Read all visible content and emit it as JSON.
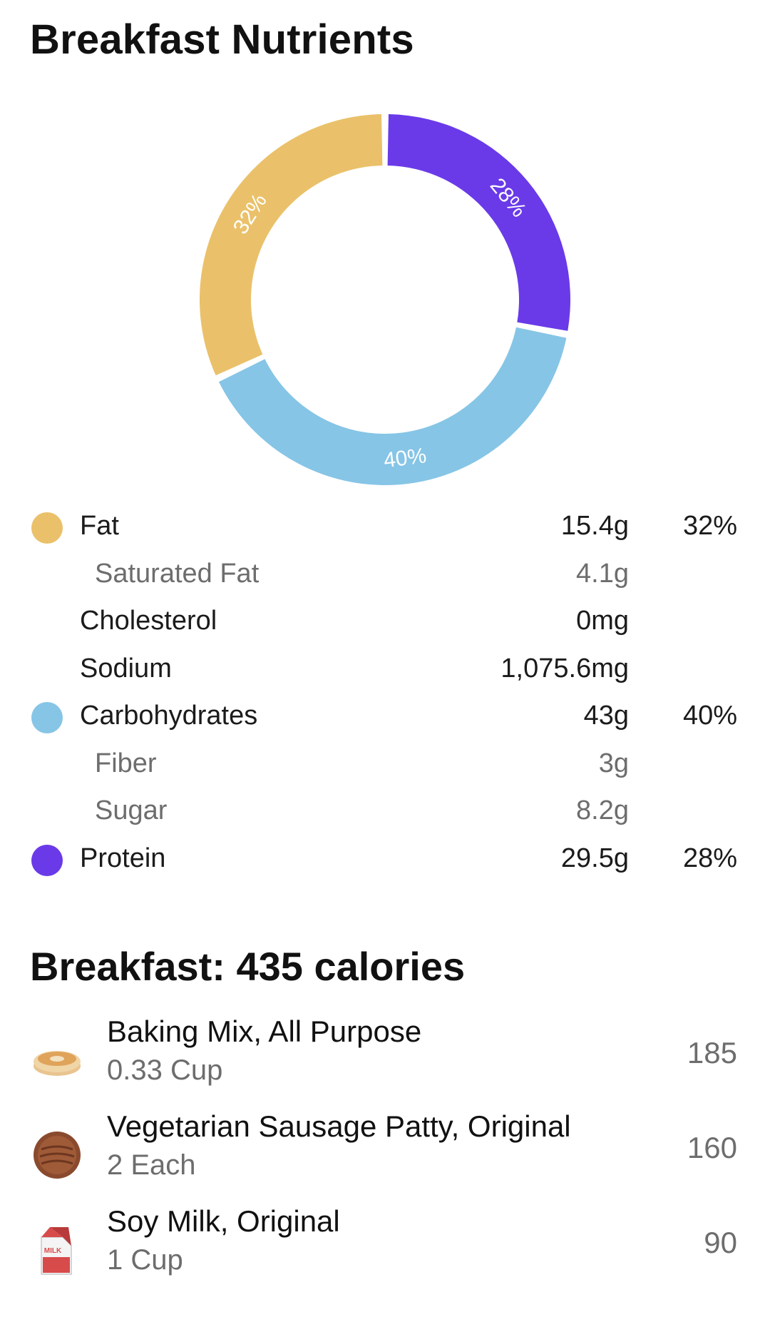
{
  "header": {
    "title": "Breakfast Nutrients"
  },
  "colors": {
    "fat": "#eac16a",
    "carbs": "#86c5e6",
    "protein": "#6a3ae8"
  },
  "chart_data": {
    "type": "pie",
    "title": "",
    "categories": [
      "Fat",
      "Carbohydrates",
      "Protein"
    ],
    "values": [
      32,
      40,
      28
    ],
    "labels": [
      "32%",
      "40%",
      "28%"
    ],
    "colors": [
      "#eac16a",
      "#86c5e6",
      "#6a3ae8"
    ]
  },
  "nutrients": [
    {
      "label": "Fat",
      "value": "15.4g",
      "pct": "32%",
      "color": "#eac16a",
      "sub": false
    },
    {
      "label": "Saturated Fat",
      "value": "4.1g",
      "pct": "",
      "color": "",
      "sub": true
    },
    {
      "label": "Cholesterol",
      "value": "0mg",
      "pct": "",
      "color": "",
      "sub": false
    },
    {
      "label": "Sodium",
      "value": "1,075.6mg",
      "pct": "",
      "color": "",
      "sub": false
    },
    {
      "label": "Carbohydrates",
      "value": "43g",
      "pct": "40%",
      "color": "#86c5e6",
      "sub": false
    },
    {
      "label": "Fiber",
      "value": "3g",
      "pct": "",
      "color": "",
      "sub": true
    },
    {
      "label": "Sugar",
      "value": "8.2g",
      "pct": "",
      "color": "",
      "sub": true
    },
    {
      "label": "Protein",
      "value": "29.5g",
      "pct": "28%",
      "color": "#6a3ae8",
      "sub": false
    }
  ],
  "meal": {
    "title": "Breakfast: 435 calories",
    "items": [
      {
        "name": "Baking Mix, All Purpose",
        "qty": "0.33 Cup",
        "cal": "185",
        "icon": "pancake-icon"
      },
      {
        "name": "Vegetarian Sausage Patty, Original",
        "qty": "2 Each",
        "cal": "160",
        "icon": "sausage-patty-icon"
      },
      {
        "name": "Soy Milk, Original",
        "qty": "1 Cup",
        "cal": "90",
        "icon": "milk-carton-icon",
        "icon_text": "MILK"
      }
    ]
  }
}
